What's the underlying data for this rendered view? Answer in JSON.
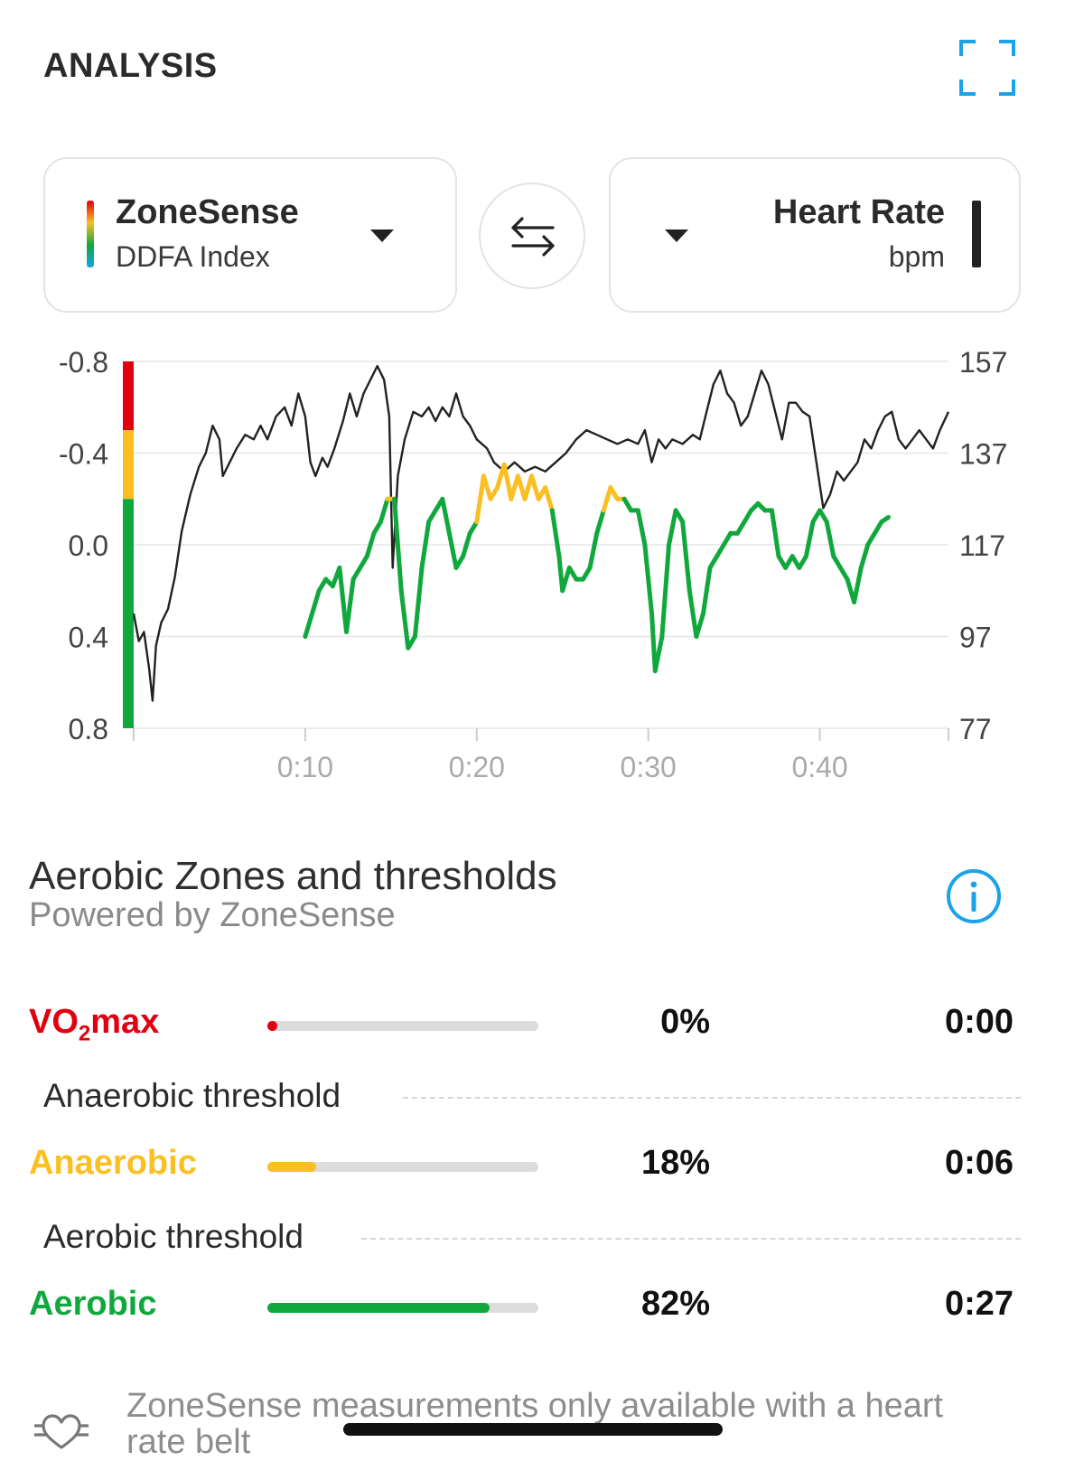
{
  "header": {
    "title": "ANALYSIS",
    "expand_icon": "expand-icon"
  },
  "left_metric": {
    "title": "ZoneSense",
    "subtitle": "DDFA Index",
    "dropdown_icon": "caret-down-icon"
  },
  "swap_icon": "swap-arrows-icon",
  "right_metric": {
    "title": "Heart Rate",
    "subtitle": "bpm",
    "dropdown_icon": "caret-down-icon"
  },
  "chart_data": {
    "type": "line",
    "x_ticks": [
      "0:10",
      "0:20",
      "0:30",
      "0:40"
    ],
    "x_range_minutes": [
      0,
      47.5
    ],
    "left_axis": {
      "label": "",
      "ticks": [
        "-0.8",
        "-0.4",
        "0.0",
        "0.4",
        "0.8"
      ],
      "range": [
        -0.8,
        0.8
      ],
      "inverted": true
    },
    "right_axis": {
      "label": "",
      "ticks": [
        "157",
        "137",
        "117",
        "97",
        "77"
      ],
      "range": [
        77,
        157
      ]
    },
    "grid": true,
    "zone_band": [
      {
        "zone": "VO2max",
        "from": -0.8,
        "to": -0.5,
        "color": "#e00010"
      },
      {
        "zone": "Anaerobic",
        "from": -0.5,
        "to": -0.2,
        "color": "#fbbf24"
      },
      {
        "zone": "Aerobic",
        "from": -0.2,
        "to": 0.8,
        "color": "#10a83c"
      }
    ],
    "series": [
      {
        "axis": "right",
        "color": "#222222",
        "points": [
          [
            0,
            102
          ],
          [
            0.3,
            96
          ],
          [
            0.6,
            98
          ],
          [
            0.9,
            90
          ],
          [
            1.1,
            83
          ],
          [
            1.3,
            95
          ],
          [
            1.6,
            100
          ],
          [
            2,
            103
          ],
          [
            2.4,
            110
          ],
          [
            2.8,
            120
          ],
          [
            3.3,
            128
          ],
          [
            3.8,
            134
          ],
          [
            4.2,
            137
          ],
          [
            4.6,
            143
          ],
          [
            5,
            140
          ],
          [
            5.2,
            132
          ],
          [
            5.6,
            135
          ],
          [
            6,
            138
          ],
          [
            6.5,
            141
          ],
          [
            7,
            140
          ],
          [
            7.4,
            143
          ],
          [
            7.8,
            140
          ],
          [
            8.3,
            145
          ],
          [
            8.8,
            147
          ],
          [
            9.2,
            143
          ],
          [
            9.6,
            150
          ],
          [
            10,
            145
          ],
          [
            10.3,
            135
          ],
          [
            10.6,
            132
          ],
          [
            11,
            136
          ],
          [
            11.3,
            134
          ],
          [
            11.7,
            138
          ],
          [
            12.2,
            144
          ],
          [
            12.6,
            150
          ],
          [
            13,
            145
          ],
          [
            13.4,
            150
          ],
          [
            13.8,
            153
          ],
          [
            14.2,
            156
          ],
          [
            14.6,
            153
          ],
          [
            14.9,
            145
          ],
          [
            15.1,
            112
          ],
          [
            15.4,
            132
          ],
          [
            15.8,
            140
          ],
          [
            16.3,
            146
          ],
          [
            16.8,
            145
          ],
          [
            17.2,
            147
          ],
          [
            17.6,
            144
          ],
          [
            18,
            147
          ],
          [
            18.4,
            145
          ],
          [
            18.8,
            150
          ],
          [
            19.2,
            145
          ],
          [
            19.6,
            143
          ],
          [
            20,
            140
          ],
          [
            20.6,
            138
          ],
          [
            21,
            135
          ],
          [
            21.6,
            133
          ],
          [
            22.2,
            135
          ],
          [
            22.8,
            133
          ],
          [
            23.4,
            134
          ],
          [
            24,
            133
          ],
          [
            24.6,
            135
          ],
          [
            25.2,
            137
          ],
          [
            25.8,
            140
          ],
          [
            26.4,
            142
          ],
          [
            27,
            141
          ],
          [
            27.6,
            140
          ],
          [
            28.2,
            139
          ],
          [
            28.8,
            140
          ],
          [
            29.4,
            139
          ],
          [
            29.8,
            142
          ],
          [
            30.2,
            135
          ],
          [
            30.6,
            140
          ],
          [
            31,
            138
          ],
          [
            31.4,
            140
          ],
          [
            32,
            139
          ],
          [
            32.6,
            141
          ],
          [
            33,
            140
          ],
          [
            33.4,
            146
          ],
          [
            33.8,
            152
          ],
          [
            34.2,
            155
          ],
          [
            34.6,
            150
          ],
          [
            35,
            148
          ],
          [
            35.4,
            143
          ],
          [
            35.8,
            145
          ],
          [
            36.2,
            150
          ],
          [
            36.6,
            155
          ],
          [
            37,
            152
          ],
          [
            37.4,
            146
          ],
          [
            37.8,
            140
          ],
          [
            38.2,
            148
          ],
          [
            38.6,
            148
          ],
          [
            39,
            146
          ],
          [
            39.4,
            145
          ],
          [
            39.8,
            135
          ],
          [
            40.2,
            125
          ],
          [
            40.6,
            128
          ],
          [
            41,
            133
          ],
          [
            41.4,
            131
          ],
          [
            41.8,
            133
          ],
          [
            42.2,
            135
          ],
          [
            42.6,
            140
          ],
          [
            43,
            138
          ],
          [
            43.4,
            142
          ],
          [
            43.8,
            145
          ],
          [
            44.2,
            146
          ],
          [
            44.6,
            140
          ],
          [
            45,
            138
          ],
          [
            45.4,
            140
          ],
          [
            45.8,
            142
          ],
          [
            46.2,
            140
          ],
          [
            46.6,
            138
          ],
          [
            47,
            142
          ],
          [
            47.5,
            146
          ]
        ]
      },
      {
        "axis": "left",
        "color_rule": "zone",
        "points": [
          [
            10,
            0.4
          ],
          [
            10.4,
            0.3
          ],
          [
            10.8,
            0.2
          ],
          [
            11.2,
            0.15
          ],
          [
            11.6,
            0.18
          ],
          [
            12,
            0.1
          ],
          [
            12.4,
            0.38
          ],
          [
            12.8,
            0.15
          ],
          [
            13.2,
            0.1
          ],
          [
            13.6,
            0.05
          ],
          [
            14,
            -0.05
          ],
          [
            14.4,
            -0.1
          ],
          [
            14.8,
            -0.2
          ],
          [
            15.2,
            -0.2
          ],
          [
            15.6,
            0.2
          ],
          [
            16,
            0.45
          ],
          [
            16.4,
            0.4
          ],
          [
            16.8,
            0.1
          ],
          [
            17.2,
            -0.1
          ],
          [
            17.6,
            -0.15
          ],
          [
            18,
            -0.2
          ],
          [
            18.4,
            -0.05
          ],
          [
            18.8,
            0.1
          ],
          [
            19.2,
            0.05
          ],
          [
            19.6,
            -0.05
          ],
          [
            20,
            -0.1
          ],
          [
            20.4,
            -0.3
          ],
          [
            20.8,
            -0.2
          ],
          [
            21.2,
            -0.25
          ],
          [
            21.6,
            -0.35
          ],
          [
            22,
            -0.2
          ],
          [
            22.4,
            -0.3
          ],
          [
            22.8,
            -0.2
          ],
          [
            23.2,
            -0.3
          ],
          [
            23.6,
            -0.2
          ],
          [
            24,
            -0.25
          ],
          [
            24.4,
            -0.15
          ],
          [
            24.8,
            0.05
          ],
          [
            25,
            0.2
          ],
          [
            25.4,
            0.1
          ],
          [
            25.8,
            0.15
          ],
          [
            26.2,
            0.15
          ],
          [
            26.6,
            0.1
          ],
          [
            27,
            -0.05
          ],
          [
            27.4,
            -0.15
          ],
          [
            27.8,
            -0.25
          ],
          [
            28.2,
            -0.2
          ],
          [
            28.6,
            -0.2
          ],
          [
            29,
            -0.15
          ],
          [
            29.4,
            -0.15
          ],
          [
            29.8,
            0.0
          ],
          [
            30.2,
            0.3
          ],
          [
            30.4,
            0.55
          ],
          [
            30.8,
            0.4
          ],
          [
            31.2,
            0.0
          ],
          [
            31.6,
            -0.15
          ],
          [
            32,
            -0.1
          ],
          [
            32.4,
            0.2
          ],
          [
            32.8,
            0.4
          ],
          [
            33.2,
            0.3
          ],
          [
            33.6,
            0.1
          ],
          [
            34,
            0.05
          ],
          [
            34.4,
            0.0
          ],
          [
            34.8,
            -0.05
          ],
          [
            35.2,
            -0.05
          ],
          [
            35.6,
            -0.1
          ],
          [
            36,
            -0.15
          ],
          [
            36.4,
            -0.18
          ],
          [
            36.8,
            -0.15
          ],
          [
            37.2,
            -0.15
          ],
          [
            37.6,
            0.05
          ],
          [
            38,
            0.1
          ],
          [
            38.4,
            0.05
          ],
          [
            38.8,
            0.1
          ],
          [
            39.2,
            0.05
          ],
          [
            39.6,
            -0.1
          ],
          [
            40,
            -0.15
          ],
          [
            40.4,
            -0.1
          ],
          [
            40.8,
            0.05
          ],
          [
            41.2,
            0.1
          ],
          [
            41.6,
            0.15
          ],
          [
            42,
            0.25
          ],
          [
            42.4,
            0.1
          ],
          [
            42.8,
            0.0
          ],
          [
            43.2,
            -0.05
          ],
          [
            43.6,
            -0.1
          ],
          [
            44,
            -0.12
          ]
        ]
      }
    ]
  },
  "zones": {
    "title": "Aerobic Zones and thresholds",
    "subtitle": "Powered by ZoneSense",
    "info_icon": "info-icon",
    "rows": [
      {
        "name_main": "VO",
        "name_sub": "2",
        "name_tail": "max",
        "color": "#e00010",
        "fraction": 0.0,
        "percent": "0%",
        "time": "0:00"
      },
      {
        "name": "Anaerobic",
        "color": "#fbbf24",
        "fraction": 0.18,
        "percent": "18%",
        "time": "0:06"
      },
      {
        "name": "Aerobic",
        "color": "#10a83c",
        "fraction": 0.82,
        "percent": "82%",
        "time": "0:27"
      }
    ],
    "thresholds": {
      "anaerobic": "Anaerobic threshold",
      "aerobic": "Aerobic threshold"
    }
  },
  "footer": {
    "text": "ZoneSense measurements only available with a heart rate belt",
    "icon": "heart-belt-icon"
  }
}
